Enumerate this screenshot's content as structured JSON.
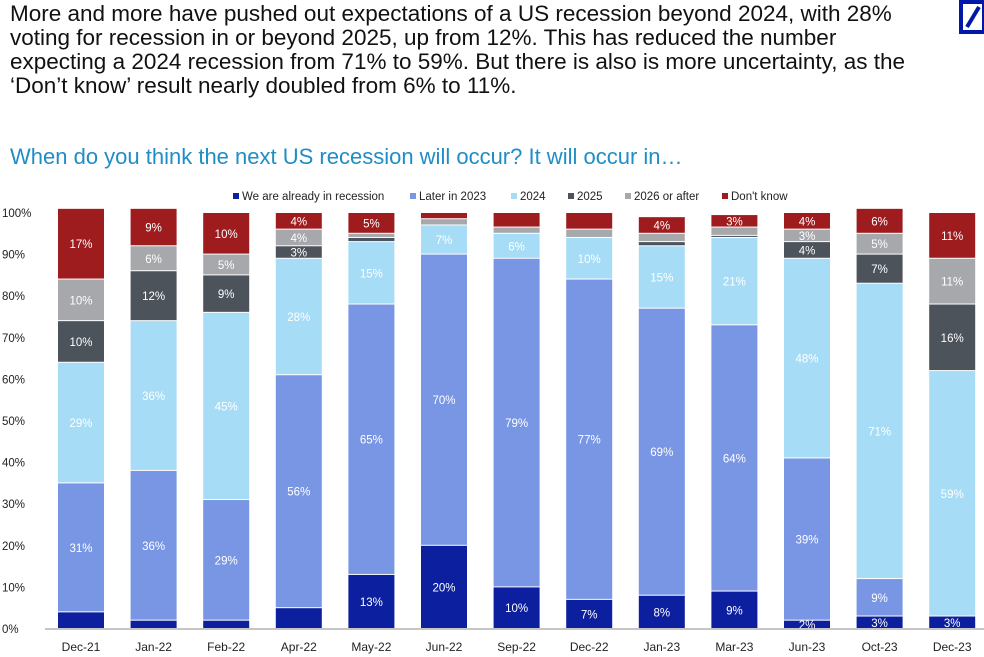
{
  "intro_text": "More and more have pushed out expectations of a US recession beyond 2024, with 28% voting for recession in or beyond 2025, up from 12%. This has reduced the number expecting a 2024 recession from 71% to 59%. But there is also is more uncertainty, as the ‘Don’t know’ result nearly doubled from 6% to 11%.",
  "logo": {
    "icon": "deutsche-bank-logo",
    "color": "#0018a8"
  },
  "chart_data": {
    "type": "bar",
    "stacked": true,
    "title": "When do you think the next US recession will occur? It will occur in…",
    "xlabel": "",
    "ylabel": "",
    "ylim": [
      0,
      100
    ],
    "yticks": [
      "0%",
      "10%",
      "20%",
      "30%",
      "40%",
      "50%",
      "60%",
      "70%",
      "80%",
      "90%",
      "100%"
    ],
    "legend_position": "top",
    "grid": false,
    "categories": [
      "Dec-21",
      "Jan-22",
      "Feb-22",
      "Apr-22",
      "May-22",
      "Jun-22",
      "Sep-22",
      "Dec-22",
      "Jan-23",
      "Mar-23",
      "Jun-23",
      "Oct-23",
      "Dec-23"
    ],
    "series": [
      {
        "name": "We are already in recession",
        "color": "#0c1f9e",
        "label_color": "#ffffff",
        "values": [
          4,
          2,
          2,
          5,
          13,
          20,
          10,
          7,
          8,
          9,
          2,
          3,
          3
        ],
        "labels": [
          "",
          "",
          "",
          "",
          "13%",
          "20%",
          "10%",
          "7%",
          "8%",
          "9%",
          "2%",
          "3%",
          "3%"
        ]
      },
      {
        "name": "Later in 2023",
        "color": "#7896e4",
        "label_color": "#ffffff",
        "values": [
          31,
          36,
          29,
          56,
          65,
          70,
          79,
          77,
          69,
          64,
          39,
          9,
          0
        ],
        "labels": [
          "31%",
          "36%",
          "29%",
          "56%",
          "65%",
          "70%",
          "79%",
          "77%",
          "69%",
          "64%",
          "39%",
          "9%",
          ""
        ]
      },
      {
        "name": "2024",
        "color": "#a7dcf6",
        "label_color": "#ffffff",
        "values": [
          29,
          36,
          45,
          28,
          15,
          7,
          6,
          10,
          15,
          21,
          48,
          71,
          59
        ],
        "labels": [
          "29%",
          "36%",
          "45%",
          "28%",
          "15%",
          "7%",
          "6%",
          "10%",
          "15%",
          "21%",
          "48%",
          "71%",
          "59%"
        ]
      },
      {
        "name": "2025",
        "color": "#4d535b",
        "label_color": "#ffffff",
        "values": [
          10,
          12,
          9,
          3,
          1,
          0,
          0,
          0,
          1,
          0.5,
          4,
          7,
          16
        ],
        "labels": [
          "10%",
          "12%",
          "9%",
          "3%",
          "",
          "",
          "",
          "",
          "",
          "",
          "4%",
          "7%",
          "16%"
        ]
      },
      {
        "name": "2026 or after",
        "color": "#a6a8ac",
        "label_color": "#ffffff",
        "values": [
          10,
          6,
          5,
          4,
          1,
          1.5,
          1.5,
          2,
          2,
          2,
          3,
          5,
          11
        ],
        "labels": [
          "10%",
          "6%",
          "5%",
          "4%",
          "",
          "",
          "",
          "",
          "",
          "",
          "3%",
          "5%",
          "11%"
        ]
      },
      {
        "name": "Don't know",
        "color": "#9e1b1e",
        "label_color": "#ffffff",
        "values": [
          17,
          9,
          10,
          4,
          5,
          1.5,
          3.5,
          4,
          4,
          3,
          4,
          6,
          11
        ],
        "labels": [
          "17%",
          "9%",
          "10%",
          "4%",
          "5%",
          "",
          "",
          "",
          "4%",
          "3%",
          "4%",
          "6%",
          "11%"
        ]
      }
    ]
  }
}
